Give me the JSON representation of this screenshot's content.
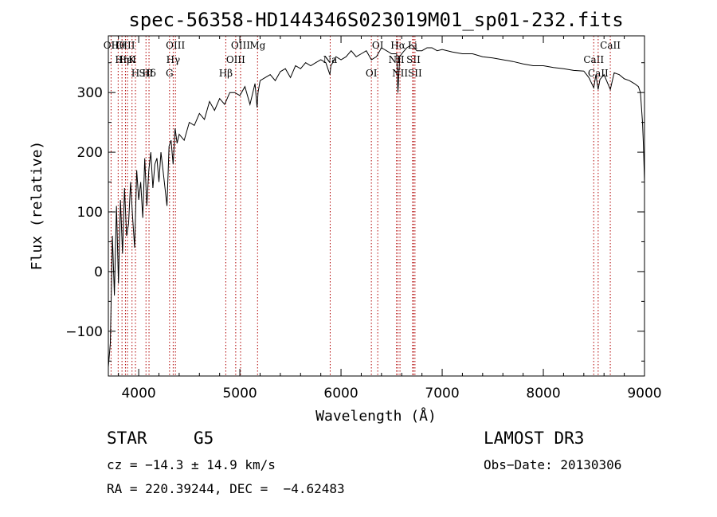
{
  "chart_data": {
    "type": "line",
    "title": "spec-56358-HD144346S023019M01_sp01-232.fits",
    "xlabel": "Wavelength (Å)",
    "ylabel": "Flux (relative)",
    "xlim": [
      3700,
      9000
    ],
    "ylim": [
      -175,
      395
    ],
    "x_ticks": [
      4000,
      5000,
      6000,
      7000,
      8000,
      9000
    ],
    "y_ticks": [
      -100,
      0,
      100,
      200,
      300
    ],
    "line_color": "#000000",
    "marker_color": "#b00000",
    "series": [
      {
        "name": "flux",
        "x": [
          3700,
          3720,
          3740,
          3760,
          3780,
          3800,
          3820,
          3840,
          3860,
          3880,
          3900,
          3920,
          3940,
          3960,
          3980,
          4000,
          4020,
          4040,
          4060,
          4080,
          4100,
          4120,
          4140,
          4160,
          4180,
          4200,
          4220,
          4240,
          4260,
          4280,
          4300,
          4320,
          4340,
          4360,
          4380,
          4400,
          4450,
          4500,
          4550,
          4600,
          4650,
          4700,
          4750,
          4800,
          4850,
          4900,
          4950,
          5000,
          5050,
          5100,
          5150,
          5170,
          5180,
          5200,
          5250,
          5300,
          5350,
          5400,
          5450,
          5500,
          5550,
          5600,
          5650,
          5700,
          5750,
          5800,
          5850,
          5890,
          5900,
          5950,
          6000,
          6050,
          6100,
          6150,
          6200,
          6250,
          6300,
          6350,
          6400,
          6450,
          6500,
          6550,
          6563,
          6580,
          6600,
          6650,
          6700,
          6750,
          6800,
          6850,
          6900,
          6950,
          7000,
          7100,
          7200,
          7300,
          7400,
          7500,
          7600,
          7700,
          7800,
          7900,
          8000,
          8100,
          8200,
          8300,
          8400,
          8450,
          8498,
          8520,
          8542,
          8560,
          8600,
          8662,
          8700,
          8750,
          8800,
          8850,
          8900,
          8940,
          8960,
          8980,
          8990,
          9000
        ],
        "values": [
          -160,
          -120,
          60,
          -40,
          110,
          -20,
          120,
          30,
          140,
          60,
          80,
          150,
          90,
          40,
          170,
          120,
          150,
          90,
          190,
          110,
          170,
          200,
          140,
          180,
          190,
          150,
          200,
          170,
          140,
          110,
          210,
          220,
          180,
          240,
          215,
          230,
          220,
          250,
          245,
          265,
          255,
          285,
          270,
          290,
          280,
          300,
          300,
          295,
          310,
          280,
          315,
          275,
          300,
          320,
          325,
          330,
          320,
          335,
          340,
          325,
          345,
          340,
          350,
          345,
          350,
          355,
          350,
          330,
          345,
          360,
          355,
          360,
          370,
          360,
          365,
          370,
          355,
          360,
          375,
          370,
          365,
          365,
          300,
          360,
          365,
          375,
          380,
          370,
          370,
          375,
          375,
          370,
          372,
          368,
          365,
          365,
          360,
          358,
          355,
          352,
          348,
          345,
          345,
          342,
          340,
          337,
          336,
          325,
          308,
          330,
          305,
          322,
          330,
          305,
          333,
          330,
          323,
          320,
          315,
          310,
          300,
          250,
          210,
          150
        ]
      }
    ],
    "spectral_lines": [
      {
        "label": "Hθ",
        "x": 3797
      },
      {
        "label": "K",
        "x": 3934
      },
      {
        "label": "Hδ",
        "x": 4102
      },
      {
        "label": "OII",
        "x": 3727
      },
      {
        "label": "HeI",
        "x": 3889
      },
      {
        "label": "SII",
        "x": 4072
      },
      {
        "label": "OIII",
        "x": 3869
      },
      {
        "label": "Hη",
        "x": 3835
      },
      {
        "label": "H",
        "x": 3968
      },
      {
        "label": "OIII",
        "x": 4363
      },
      {
        "label": "Hγ",
        "x": 4341
      },
      {
        "label": "G",
        "x": 4305
      },
      {
        "label": "OIII",
        "x": 5007
      },
      {
        "label": "OIII",
        "x": 4959
      },
      {
        "label": "Hβ",
        "x": 4861
      },
      {
        "label": "Mg",
        "x": 5175
      },
      {
        "label": "Na",
        "x": 5893
      },
      {
        "label": "OI",
        "x": 6300
      },
      {
        "label": "OI",
        "x": 6363
      },
      {
        "label": "NII",
        "x": 6548
      },
      {
        "label": "NII",
        "x": 6583
      },
      {
        "label": "Hα",
        "x": 6563
      },
      {
        "label": "SII",
        "x": 6716
      },
      {
        "label": "SII",
        "x": 6731
      },
      {
        "label": "Li",
        "x": 6708
      },
      {
        "label": "CaII",
        "x": 8498
      },
      {
        "label": "CaII",
        "x": 8542
      },
      {
        "label": "CaII",
        "x": 8662
      }
    ]
  },
  "info": {
    "class_label": "STAR",
    "subclass": "G5",
    "survey": "LAMOST DR3",
    "cz_text": "cz = −14.3 ± 14.9 km/s",
    "obs_date": "Obs−Date: 20130306",
    "coords": "RA = 220.39244, DEC =  −4.62483"
  }
}
